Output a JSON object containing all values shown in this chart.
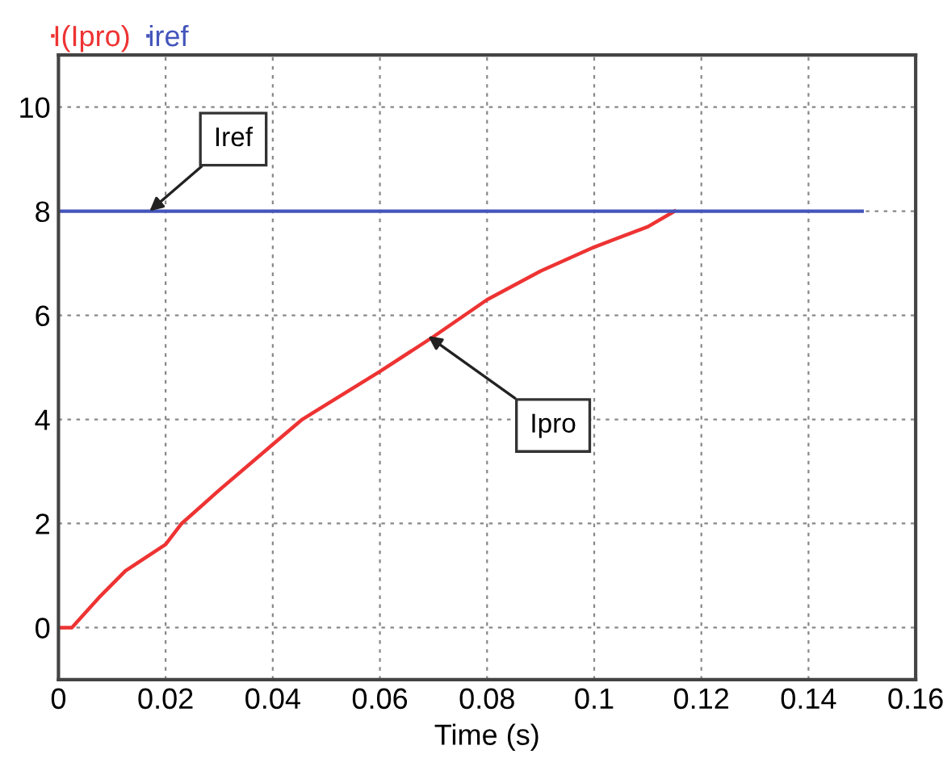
{
  "chart_data": {
    "type": "line",
    "xlabel": "Time (s)",
    "xlim": [
      0,
      0.16
    ],
    "ylim": [
      -1,
      11
    ],
    "xticks": [
      0,
      0.02,
      0.04,
      0.06,
      0.08,
      0.1,
      0.12,
      0.14,
      0.16
    ],
    "yticks": [
      0,
      2,
      4,
      6,
      8,
      10
    ],
    "grid": true,
    "legend": "top left",
    "line_style": "solid",
    "marker": "none",
    "series": [
      {
        "name": "I(Ipro)",
        "color": "#ee3333",
        "x": [
          0,
          0.0025,
          0.0075,
          0.0125,
          0.02,
          0.023,
          0.03,
          0.04,
          0.0455,
          0.06,
          0.07,
          0.08,
          0.09,
          0.1,
          0.11,
          0.115
        ],
        "values": [
          0,
          0,
          0.57,
          1.09,
          1.6,
          2.0,
          2.64,
          3.52,
          4.0,
          4.92,
          5.59,
          6.3,
          6.85,
          7.31,
          7.7,
          8
        ]
      },
      {
        "name": "iref",
        "color": "#4455bb",
        "x": [
          0,
          0.15
        ],
        "values": [
          8,
          8
        ]
      }
    ],
    "annotations": [
      {
        "text": "Iref",
        "x": 0.017,
        "y": 8
      },
      {
        "text": "Ipro",
        "x": 0.069,
        "y": 5.6
      }
    ]
  }
}
